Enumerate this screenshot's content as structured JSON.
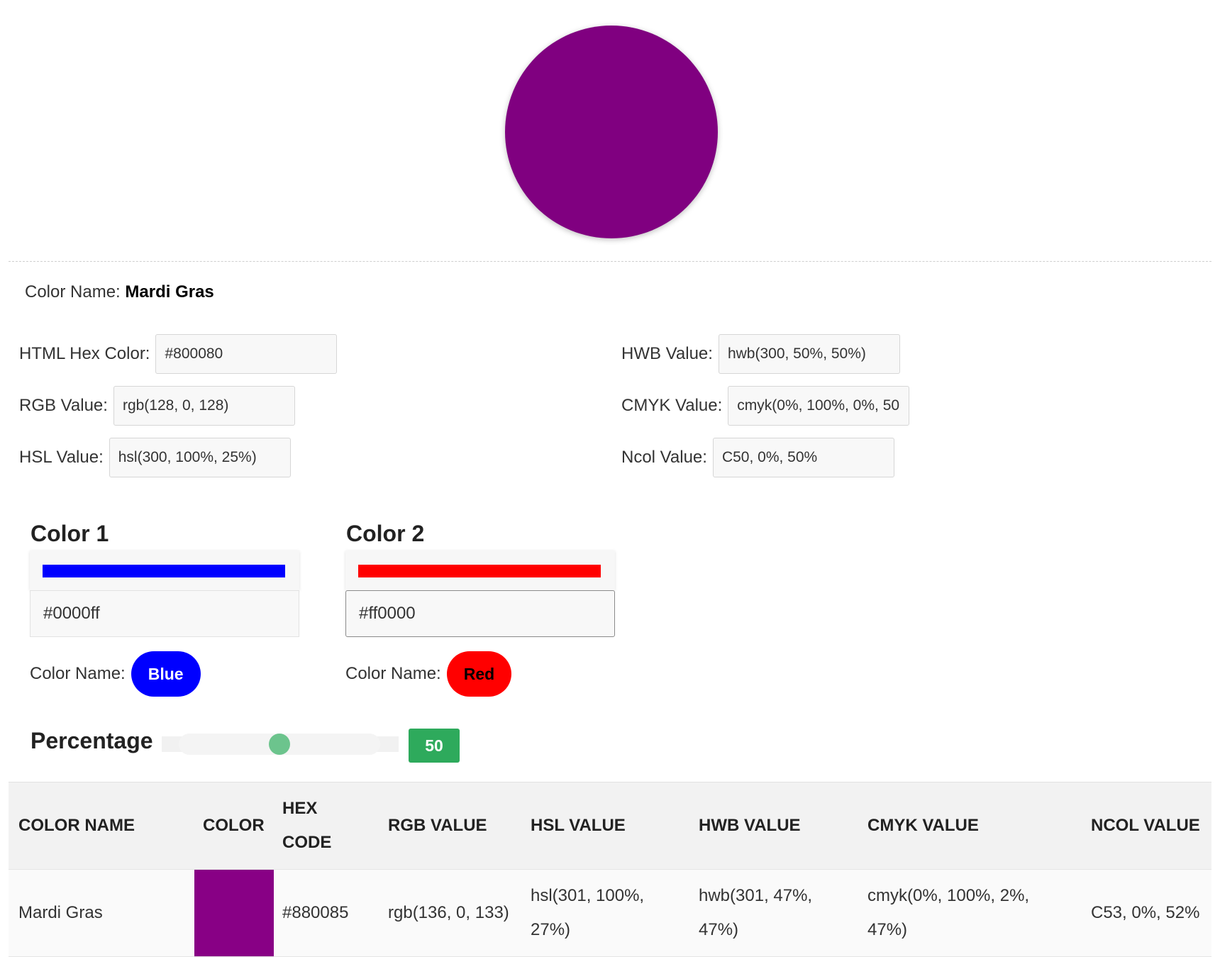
{
  "hero": {
    "color": "#800080"
  },
  "color_name": {
    "label": "Color Name:",
    "value": "Mardi Gras"
  },
  "fields": {
    "hex": {
      "label": "HTML Hex Color:",
      "value": "#800080"
    },
    "rgb": {
      "label": "RGB Value:",
      "value": "rgb(128, 0, 128)"
    },
    "hsl": {
      "label": "HSL Value:",
      "value": "hsl(300, 100%, 25%)"
    },
    "hwb": {
      "label": "HWB Value:",
      "value": "hwb(300, 50%, 50%)"
    },
    "cmyk": {
      "label": "CMYK Value:",
      "value": "cmyk(0%, 100%, 0%, 50"
    },
    "ncol": {
      "label": "Ncol Value:",
      "value": "C50, 0%, 50%"
    }
  },
  "color1": {
    "title": "Color 1",
    "hex": "#0000ff",
    "bar_color": "#0000ff",
    "name_label": "Color Name:",
    "name": "Blue",
    "pill_bg": "#0000ff",
    "pill_text": "#ffffff"
  },
  "color2": {
    "title": "Color 2",
    "hex": "#ff0000",
    "bar_color": "#ff0000",
    "name_label": "Color Name:",
    "name": "Red",
    "pill_bg": "#ff0000",
    "pill_text": "#000000"
  },
  "percentage": {
    "label": "Percentage",
    "value": "50",
    "fraction": 0.5,
    "accent": "#2eaa5c"
  },
  "table": {
    "headers": {
      "name": "COLOR NAME",
      "color": "COLOR",
      "hex_1": "HEX",
      "hex_2": "CODE",
      "rgb": "RGB VALUE",
      "hsl": "HSL VALUE",
      "hwb": "HWB VALUE",
      "cmyk": "CMYK VALUE",
      "ncol": "NCOL VALUE"
    },
    "row": {
      "name": "Mardi Gras",
      "swatch": "#880085",
      "hex": "#880085",
      "rgb": "rgb(136, 0, 133)",
      "hsl_1": "hsl(301, 100%,",
      "hsl_2": "27%)",
      "hwb_1": "hwb(301, 47%,",
      "hwb_2": "47%)",
      "cmyk_1": "cmyk(0%, 100%, 2%,",
      "cmyk_2": "47%)",
      "ncol": "C53, 0%, 52%"
    }
  }
}
